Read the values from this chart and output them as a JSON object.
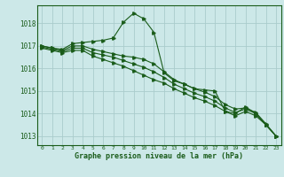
{
  "background_color": "#cce8e8",
  "grid_color": "#aacccc",
  "line_color": "#1a5c1a",
  "xlabel": "Graphe pression niveau de la mer (hPa)",
  "xlabel_fontsize": 6.0,
  "ylabel_ticks": [
    1013,
    1014,
    1015,
    1016,
    1017,
    1018
  ],
  "xlim": [
    -0.5,
    23.5
  ],
  "ylim": [
    1012.6,
    1018.8
  ],
  "series": [
    {
      "x": [
        0,
        1,
        2,
        3,
        4,
        5,
        6,
        7,
        8,
        9,
        10,
        11,
        12,
        13,
        14,
        15,
        16,
        17,
        18,
        19,
        20,
        21,
        22,
        23
      ],
      "y": [
        1017.0,
        1016.9,
        1016.85,
        1017.1,
        1017.15,
        1017.2,
        1017.25,
        1017.35,
        1018.05,
        1018.45,
        1018.2,
        1017.6,
        1015.8,
        1015.45,
        1015.3,
        1015.1,
        1015.05,
        1015.0,
        1014.1,
        1014.0,
        1014.3,
        1014.0,
        1013.5,
        1013.0
      ]
    },
    {
      "x": [
        0,
        1,
        2,
        3,
        4,
        5,
        6,
        7,
        8,
        9,
        10,
        11,
        12,
        13,
        14,
        15,
        16,
        17,
        18,
        19,
        20,
        21,
        22,
        23
      ],
      "y": [
        1017.0,
        1016.9,
        1016.8,
        1017.0,
        1017.0,
        1016.85,
        1016.75,
        1016.65,
        1016.55,
        1016.5,
        1016.4,
        1016.2,
        1015.85,
        1015.5,
        1015.3,
        1015.1,
        1014.95,
        1014.75,
        1014.4,
        1014.2,
        1014.25,
        1014.05,
        1013.55,
        1013.0
      ]
    },
    {
      "x": [
        0,
        1,
        2,
        3,
        4,
        5,
        6,
        7,
        8,
        9,
        10,
        11,
        12,
        13,
        14,
        15,
        16,
        17,
        18,
        19,
        20,
        21,
        22,
        23
      ],
      "y": [
        1016.95,
        1016.85,
        1016.75,
        1016.9,
        1016.9,
        1016.7,
        1016.6,
        1016.5,
        1016.35,
        1016.2,
        1016.05,
        1015.85,
        1015.6,
        1015.3,
        1015.1,
        1014.9,
        1014.75,
        1014.55,
        1014.25,
        1014.05,
        1014.2,
        1014.0,
        1013.5,
        1013.0
      ]
    },
    {
      "x": [
        0,
        1,
        2,
        3,
        4,
        5,
        6,
        7,
        8,
        9,
        10,
        11,
        12,
        13,
        14,
        15,
        16,
        17,
        18,
        19,
        20,
        21,
        22,
        23
      ],
      "y": [
        1016.9,
        1016.8,
        1016.7,
        1016.8,
        1016.8,
        1016.55,
        1016.4,
        1016.25,
        1016.1,
        1015.9,
        1015.7,
        1015.5,
        1015.35,
        1015.1,
        1014.9,
        1014.7,
        1014.55,
        1014.35,
        1014.1,
        1013.9,
        1014.1,
        1013.9,
        1013.5,
        1013.0
      ]
    }
  ]
}
